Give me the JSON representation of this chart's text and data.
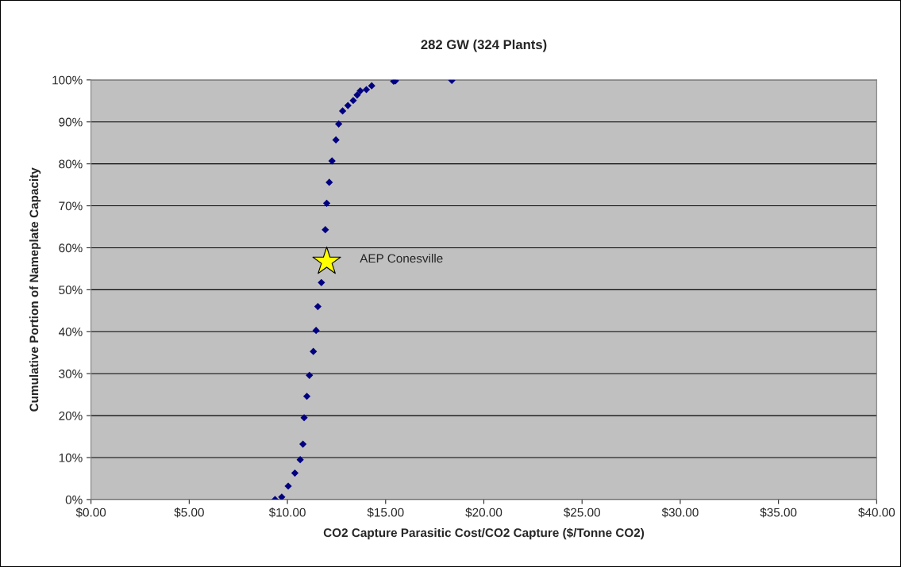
{
  "chart_data": {
    "type": "scatter",
    "title": "282 GW (324 Plants)",
    "xlabel": "CO2 Capture Parasitic Cost/CO2 Capture ($/Tonne CO2)",
    "ylabel": "Cumulative Portion of Nameplate Capacity",
    "series": [
      {
        "color": "#000080",
        "marker": "diamond",
        "x": [
          9.37,
          9.71,
          10.04,
          10.38,
          10.65,
          10.79,
          10.85,
          10.99,
          11.12,
          11.32,
          11.46,
          11.55,
          11.73,
          11.86,
          11.93,
          12.0,
          12.13,
          12.27,
          12.47,
          12.61,
          12.81,
          13.08,
          13.35,
          13.55,
          13.71,
          14.02,
          14.29,
          15.41,
          15.5,
          18.37
        ],
        "values": [
          0,
          0.6,
          3.2,
          6.3,
          9.5,
          13.2,
          19.5,
          24.6,
          29.6,
          35.3,
          40.3,
          46,
          51.7,
          null,
          64.3,
          70.6,
          75.6,
          80.7,
          85.7,
          89.5,
          92.6,
          93.9,
          95.1,
          96.4,
          97.4,
          97.7,
          98.6,
          99.7,
          99.8,
          99.9
        ]
      },
      {
        "color": "#ffff00",
        "marker": "star",
        "x": [
          12.0
        ],
        "values": [
          56.7
        ]
      }
    ],
    "annotations": [
      {
        "text": "AEP Conesville",
        "x": 12.0,
        "y": 56.7
      }
    ],
    "xlim": [
      0,
      40
    ],
    "ylim": [
      0,
      100
    ],
    "xticks": [
      {
        "value": 0,
        "label": "$0.00"
      },
      {
        "value": 5,
        "label": "$5.00"
      },
      {
        "value": 10,
        "label": "$10.00"
      },
      {
        "value": 15,
        "label": "$15.00"
      },
      {
        "value": 20,
        "label": "$20.00"
      },
      {
        "value": 25,
        "label": "$25.00"
      },
      {
        "value": 30,
        "label": "$30.00"
      },
      {
        "value": 35,
        "label": "$35.00"
      },
      {
        "value": 40,
        "label": "$40.00"
      }
    ],
    "yticks": [
      {
        "value": 0,
        "label": "0%"
      },
      {
        "value": 10,
        "label": "10%"
      },
      {
        "value": 20,
        "label": "20%"
      },
      {
        "value": 30,
        "label": "30%"
      },
      {
        "value": 40,
        "label": "40%"
      },
      {
        "value": 50,
        "label": "50%"
      },
      {
        "value": 60,
        "label": "60%"
      },
      {
        "value": 70,
        "label": "70%"
      },
      {
        "value": 80,
        "label": "80%"
      },
      {
        "value": 90,
        "label": "90%"
      },
      {
        "value": 100,
        "label": "100%"
      }
    ],
    "grid": "y",
    "legend": false
  }
}
